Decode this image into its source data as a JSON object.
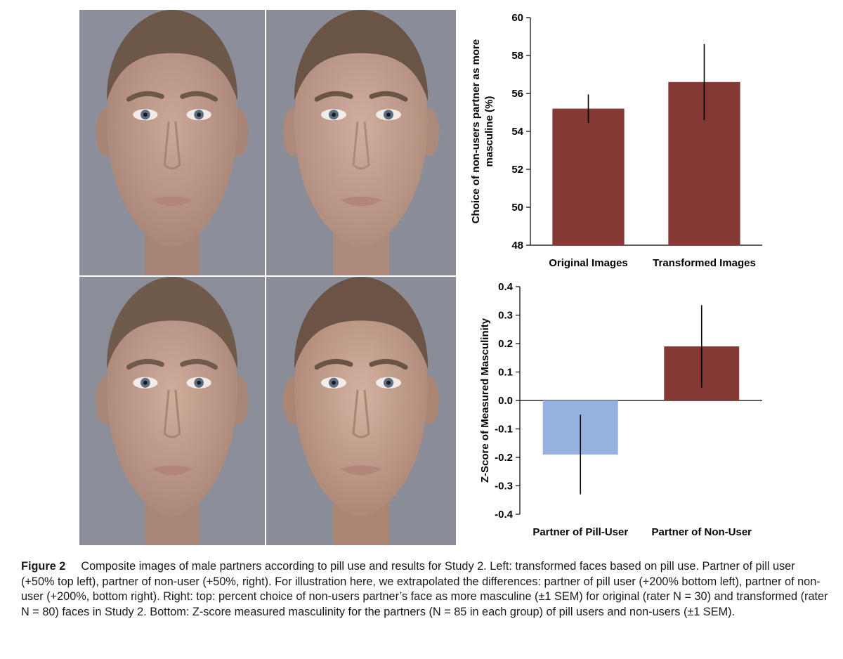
{
  "faces": [
    {
      "name": "partner-of-pill-user-50",
      "skin": "#cba797",
      "shade": "#a88474",
      "hair": "#6d5749",
      "bg": "#8c8f9b"
    },
    {
      "name": "partner-of-non-user-50",
      "skin": "#d0ad9d",
      "shade": "#ad8a79",
      "hair": "#6a5446",
      "bg": "#8a8c97"
    },
    {
      "name": "partner-of-pill-user-200",
      "skin": "#cfac9b",
      "shade": "#a98575",
      "hair": "#6f5a4c",
      "bg": "#8b8e99"
    },
    {
      "name": "partner-of-non-user-200",
      "skin": "#d4b1a1",
      "shade": "#ab8574",
      "hair": "#6b5446",
      "bg": "#8a8c98"
    }
  ],
  "chart_data": [
    {
      "type": "bar",
      "categories": [
        "Original Images",
        "Transformed  Images"
      ],
      "values": [
        55.2,
        56.6
      ],
      "error": [
        0.75,
        2.0
      ],
      "colors": [
        "#843935",
        "#843935"
      ],
      "ylabel_lines": [
        "Choice of non-users partner as more",
        "masculine (%)"
      ],
      "ylim": [
        48,
        60
      ],
      "yticks": [
        48,
        50,
        52,
        54,
        56,
        58,
        60
      ],
      "ytick_labels": [
        "48",
        "50",
        "52",
        "54",
        "56",
        "58",
        "60"
      ]
    },
    {
      "type": "bar",
      "categories": [
        "Partner of Pill-User",
        "Partner of Non-User"
      ],
      "values": [
        -0.19,
        0.19
      ],
      "error": [
        0.14,
        0.145
      ],
      "colors": [
        "#94b1e0",
        "#843935"
      ],
      "ylabel_lines": [
        "Z-Score of Measured Masculinity"
      ],
      "ylim": [
        -0.4,
        0.4
      ],
      "yticks": [
        -0.4,
        -0.3,
        -0.2,
        -0.1,
        0.0,
        0.1,
        0.2,
        0.3,
        0.4
      ],
      "ytick_labels": [
        "-0.4",
        "-0.3",
        "-0.2",
        "-0.1",
        "0.0",
        "0.1",
        "0.2",
        "0.3",
        "0.4"
      ]
    }
  ],
  "caption": {
    "label": "Figure 2",
    "text": "Composite images of male partners according to pill use and results for Study 2. Left: transformed faces based on pill use. Partner of pill user (+50% top left), partner of non-user (+50%, right). For illustration here, we extrapolated the differences: partner of pill user (+200% bottom left), partner of non-user (+200%, bottom right). Right: top: percent choice of non-users partner’s face as more masculine (±1 SEM) for original (rater N = 30) and transformed (rater N = 80) faces in Study 2. Bottom: Z-score measured masculinity for the partners (N = 85 in each group) of pill users and non-users (±1 SEM)."
  }
}
